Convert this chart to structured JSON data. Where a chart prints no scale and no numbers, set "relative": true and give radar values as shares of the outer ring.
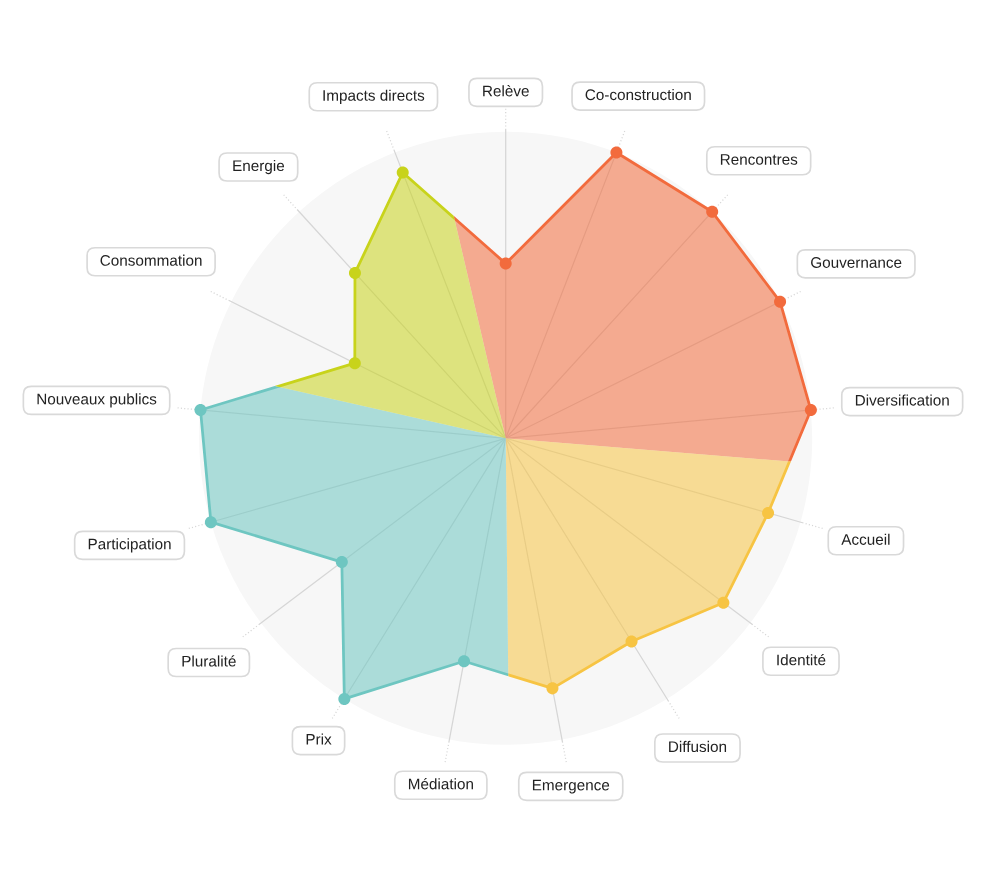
{
  "chart_data": {
    "type": "radar",
    "relative": true,
    "categories": [
      "Relève",
      "Co-construction",
      "Rencontres",
      "Gouvernance",
      "Diversification",
      "Accueil",
      "Identité",
      "Diffusion",
      "Emergence",
      "Médiation",
      "Prix",
      "Pluralité",
      "Participation",
      "Nouveaux publics",
      "Consommation",
      "Energie",
      "Impacts directs"
    ],
    "series": [
      {
        "values": [
          0.57,
          1,
          1,
          1,
          1,
          0.89,
          0.89,
          0.78,
          0.83,
          0.74,
          1,
          0.67,
          1,
          1,
          0.55,
          0.73,
          0.93
        ],
        "colors": [
          "#f26b3d",
          "#f26b3d",
          "#f26b3d",
          "#f26b3d",
          "#f26b3d",
          "#f7c443",
          "#f7c443",
          "#f7c443",
          "#f7c443",
          "#6ec6c1",
          "#6ec6c1",
          "#6ec6c1",
          "#6ec6c1",
          "#6ec6c1",
          "#c8d31b",
          "#c8d31b",
          "#c8d31b"
        ]
      }
    ],
    "marker": "circle",
    "line_style": "solid",
    "grid": true
  }
}
